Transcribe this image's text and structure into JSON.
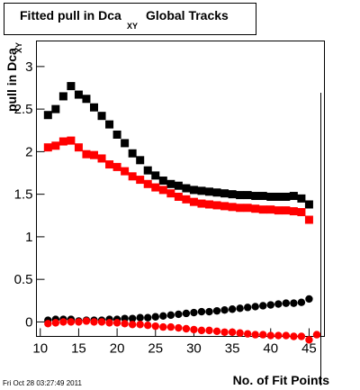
{
  "chart_data": {
    "type": "scatter",
    "title": "Fitted pull in Dca",
    "title_subscript": "XY",
    "title_suffix": "Global Tracks",
    "y_label": "pull in Dca",
    "y_label_subscript": "XY",
    "x_label": "No. of Fit Points",
    "timestamp": "Fri Oct 28 03:27:49 2011",
    "xlim": [
      9.5,
      47
    ],
    "xticks": [
      10,
      15,
      20,
      25,
      30,
      35,
      40,
      45
    ],
    "ylim": [
      -0.17,
      3.3
    ],
    "yticks": [
      0,
      0.5,
      1,
      1.5,
      2,
      2.5,
      3
    ],
    "series": [
      {
        "color": "#000000",
        "marker": "square",
        "x": [
          11,
          12,
          13,
          14,
          15,
          16,
          17,
          18,
          19,
          20,
          21,
          22,
          23,
          24,
          25,
          26,
          27,
          28,
          29,
          30,
          31,
          32,
          33,
          34,
          35,
          36,
          37,
          38,
          39,
          40,
          41,
          42,
          43,
          44,
          45
        ],
        "values": [
          2.43,
          2.5,
          2.65,
          2.77,
          2.67,
          2.62,
          2.52,
          2.42,
          2.32,
          2.2,
          2.1,
          1.98,
          1.9,
          1.78,
          1.72,
          1.66,
          1.62,
          1.6,
          1.57,
          1.55,
          1.54,
          1.53,
          1.52,
          1.51,
          1.5,
          1.49,
          1.49,
          1.48,
          1.48,
          1.47,
          1.47,
          1.47,
          1.48,
          1.45,
          1.38
        ]
      },
      {
        "color": "#ff0000",
        "marker": "square",
        "x": [
          11,
          12,
          13,
          14,
          15,
          16,
          17,
          18,
          19,
          20,
          21,
          22,
          23,
          24,
          25,
          26,
          27,
          28,
          29,
          30,
          31,
          32,
          33,
          34,
          35,
          36,
          37,
          38,
          39,
          40,
          41,
          42,
          43,
          44,
          45
        ],
        "values": [
          2.05,
          2.07,
          2.12,
          2.13,
          2.05,
          1.97,
          1.96,
          1.92,
          1.85,
          1.82,
          1.77,
          1.71,
          1.67,
          1.62,
          1.58,
          1.55,
          1.51,
          1.47,
          1.44,
          1.41,
          1.39,
          1.38,
          1.37,
          1.36,
          1.35,
          1.34,
          1.34,
          1.33,
          1.32,
          1.32,
          1.31,
          1.31,
          1.3,
          1.29,
          1.2
        ]
      },
      {
        "color": "#000000",
        "marker": "circle",
        "x": [
          11,
          12,
          13,
          14,
          15,
          16,
          17,
          18,
          19,
          20,
          21,
          22,
          23,
          24,
          25,
          26,
          27,
          28,
          29,
          30,
          31,
          32,
          33,
          34,
          35,
          36,
          37,
          38,
          39,
          40,
          41,
          42,
          43,
          44,
          45
        ],
        "values": [
          0.02,
          0.03,
          0.03,
          0.03,
          0.01,
          0.02,
          0.02,
          0.02,
          0.03,
          0.03,
          0.04,
          0.04,
          0.05,
          0.05,
          0.06,
          0.07,
          0.08,
          0.09,
          0.1,
          0.11,
          0.12,
          0.12,
          0.13,
          0.14,
          0.15,
          0.16,
          0.17,
          0.18,
          0.19,
          0.2,
          0.21,
          0.22,
          0.22,
          0.23,
          0.27
        ]
      },
      {
        "color": "#ff0000",
        "marker": "circle",
        "x": [
          11,
          12,
          13,
          14,
          15,
          16,
          17,
          18,
          19,
          20,
          21,
          22,
          23,
          24,
          25,
          26,
          27,
          28,
          29,
          30,
          31,
          32,
          33,
          34,
          35,
          36,
          37,
          38,
          39,
          40,
          41,
          42,
          43,
          44,
          45,
          46
        ],
        "values": [
          -0.02,
          -0.01,
          0,
          0,
          0,
          0.01,
          0,
          0,
          -0.01,
          -0.01,
          -0.02,
          -0.03,
          -0.03,
          -0.04,
          -0.05,
          -0.06,
          -0.06,
          -0.07,
          -0.08,
          -0.09,
          -0.1,
          -0.1,
          -0.11,
          -0.12,
          -0.12,
          -0.13,
          -0.14,
          -0.15,
          -0.15,
          -0.16,
          -0.16,
          -0.16,
          -0.17,
          -0.17,
          -0.21,
          -0.15
        ]
      }
    ]
  }
}
